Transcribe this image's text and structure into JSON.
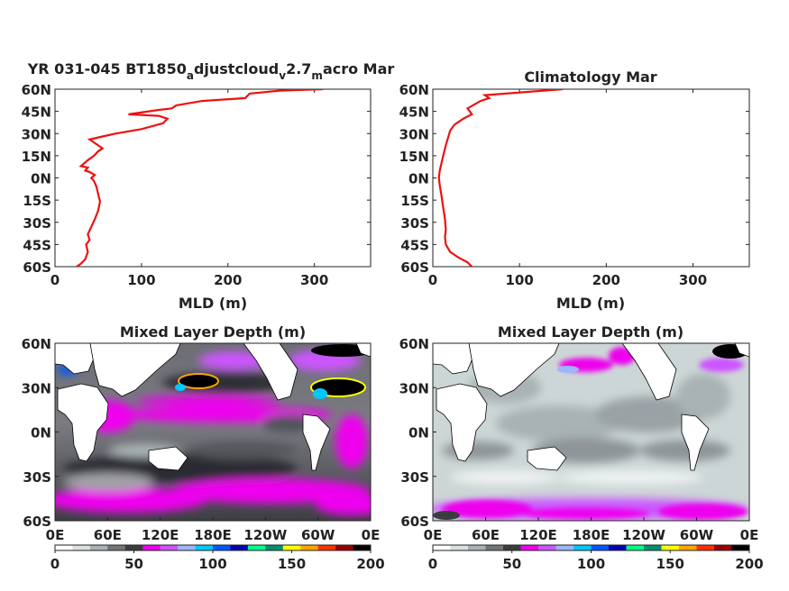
{
  "figure": {
    "top_left_title": {
      "pre": "YR 031-045 BT1850",
      "s1": "a",
      "mid1": "djustcloud",
      "s2": "v",
      "mid2": "2.7",
      "s3": "m",
      "post": "acro Mar"
    },
    "top_right_title": "Climatology Mar",
    "bottom_left_title": "Mixed Layer Depth (m)",
    "bottom_right_title": "Mixed Layer Depth (m)",
    "profile_xlabel": "MLD (m)",
    "colorbar_ticks": [
      "0",
      "50",
      "100",
      "150",
      "200"
    ],
    "colorbar_colors": [
      "#ffffff",
      "#d8e2e2",
      "#a9b2b4",
      "#737579",
      "#3b3c40",
      "#ee00ee",
      "#cc55ff",
      "#9db6ff",
      "#00c8ff",
      "#0055ff",
      "#0000b0",
      "#00ff88",
      "#009070",
      "#ffff00",
      "#ffa500",
      "#ff3000",
      "#9a0000",
      "#000000"
    ]
  },
  "chart_data": [
    {
      "type": "line",
      "title": "YR 031-045 BT1850_adjustcloud_v2.7_macro Mar",
      "xlabel": "MLD (m)",
      "xlim": [
        0,
        365
      ],
      "ylim": [
        -60,
        60
      ],
      "xticks": [
        "0",
        "100",
        "200",
        "300"
      ],
      "yticks": [
        "60N",
        "45N",
        "30N",
        "15N",
        "0N",
        "15S",
        "30S",
        "45S",
        "60S"
      ],
      "color": "#ee1111",
      "series": [
        {
          "x": [
            25,
            30,
            35,
            38,
            36,
            40,
            38,
            42,
            46,
            50,
            52,
            50,
            48,
            45,
            42,
            46,
            40,
            35,
            38,
            30,
            38,
            45,
            50,
            55,
            50,
            45,
            40,
            55,
            70,
            100,
            125,
            130,
            120,
            85,
            120,
            135,
            140,
            170,
            220,
            225,
            260,
            310
          ],
          "y": [
            -60,
            -58,
            -55,
            -50,
            -45,
            -42,
            -38,
            -33,
            -28,
            -22,
            -16,
            -11,
            -6,
            -2,
            0,
            2,
            4,
            5,
            7,
            8,
            12,
            15,
            18,
            20,
            22,
            24,
            26,
            28,
            30,
            33,
            37,
            40,
            42,
            43,
            46,
            47,
            49,
            52,
            54,
            57,
            59,
            60
          ]
        }
      ]
    },
    {
      "type": "line",
      "title": "Climatology Mar",
      "xlabel": "MLD (m)",
      "xlim": [
        0,
        365
      ],
      "ylim": [
        -60,
        60
      ],
      "xticks": [
        "0",
        "100",
        "200",
        "300"
      ],
      "yticks": [
        "60N",
        "45N",
        "30N",
        "15N",
        "0N",
        "15S",
        "30S",
        "45S",
        "60S"
      ],
      "color": "#ee1111",
      "series": [
        {
          "x": [
            45,
            40,
            30,
            20,
            15,
            14,
            15,
            14,
            12,
            10,
            8,
            7,
            8,
            10,
            12,
            15,
            18,
            20,
            25,
            35,
            45,
            40,
            55,
            65,
            60,
            150
          ],
          "y": [
            -60,
            -57,
            -54,
            -50,
            -45,
            -40,
            -35,
            -28,
            -20,
            -12,
            -5,
            0,
            5,
            10,
            15,
            22,
            28,
            32,
            36,
            40,
            43,
            47,
            52,
            54,
            56,
            60
          ]
        }
      ]
    },
    {
      "type": "heatmap",
      "title": "Mixed Layer Depth (m)",
      "lon_ticks": [
        "0E",
        "60E",
        "120E",
        "180E",
        "120W",
        "60W",
        "0E"
      ],
      "lat_ticks": [
        "60N",
        "30N",
        "0N",
        "30S",
        "60S"
      ],
      "colorbar_range": [
        0,
        200
      ]
    },
    {
      "type": "heatmap",
      "title": "Mixed Layer Depth (m)",
      "lon_ticks": [
        "0E",
        "60E",
        "120E",
        "180E",
        "120W",
        "60W",
        "0E"
      ],
      "lat_ticks": [
        "60N",
        "30N",
        "0N",
        "30S",
        "60S"
      ],
      "colorbar_range": [
        0,
        200
      ]
    }
  ]
}
